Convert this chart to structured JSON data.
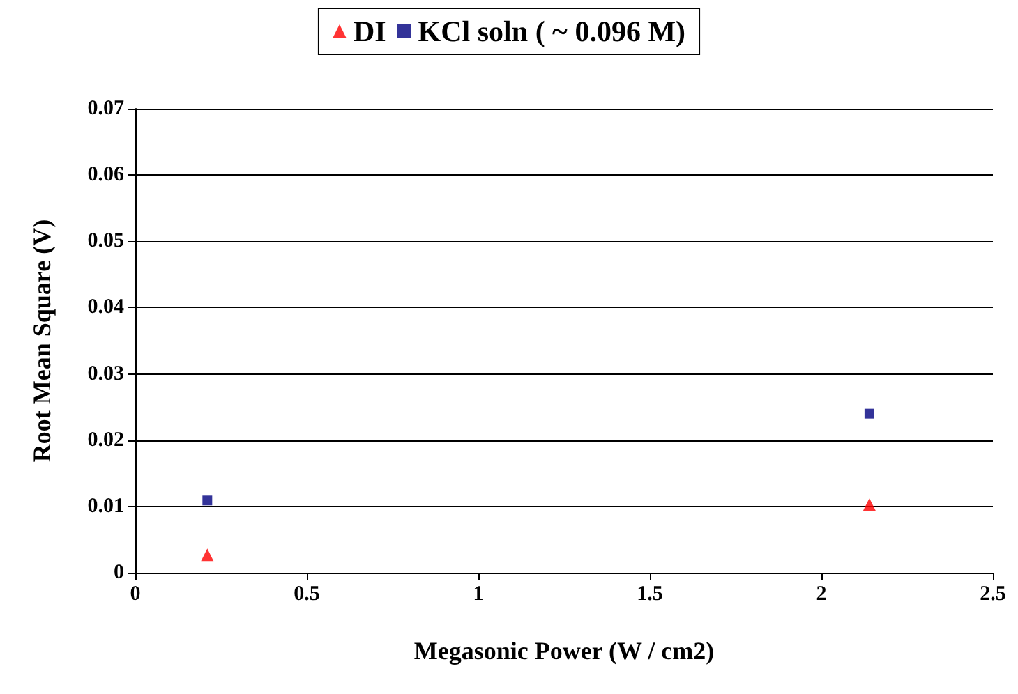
{
  "chart_data": {
    "type": "scatter",
    "xlabel": "Megasonic Power (W / cm2)",
    "ylabel": "Root Mean Square (V)",
    "xlim": [
      0,
      2.5
    ],
    "xticks": [
      0,
      0.5,
      1,
      1.5,
      2,
      2.5
    ],
    "ylim": [
      0,
      0.07
    ],
    "yticks": [
      0,
      0.01,
      0.02,
      0.03,
      0.04,
      0.05,
      0.06,
      0.07
    ],
    "grid": "y",
    "legend": "top",
    "x": [
      0.21,
      2.14
    ],
    "series": [
      {
        "name": "DI",
        "color": "#ff0000",
        "marker": "triangle",
        "values": [
          0.0027,
          0.0103
        ]
      },
      {
        "name": "KCl soln ( ~ 0.096 M)",
        "color": "#000080",
        "marker": "square",
        "values": [
          0.0109,
          0.024
        ]
      }
    ]
  }
}
